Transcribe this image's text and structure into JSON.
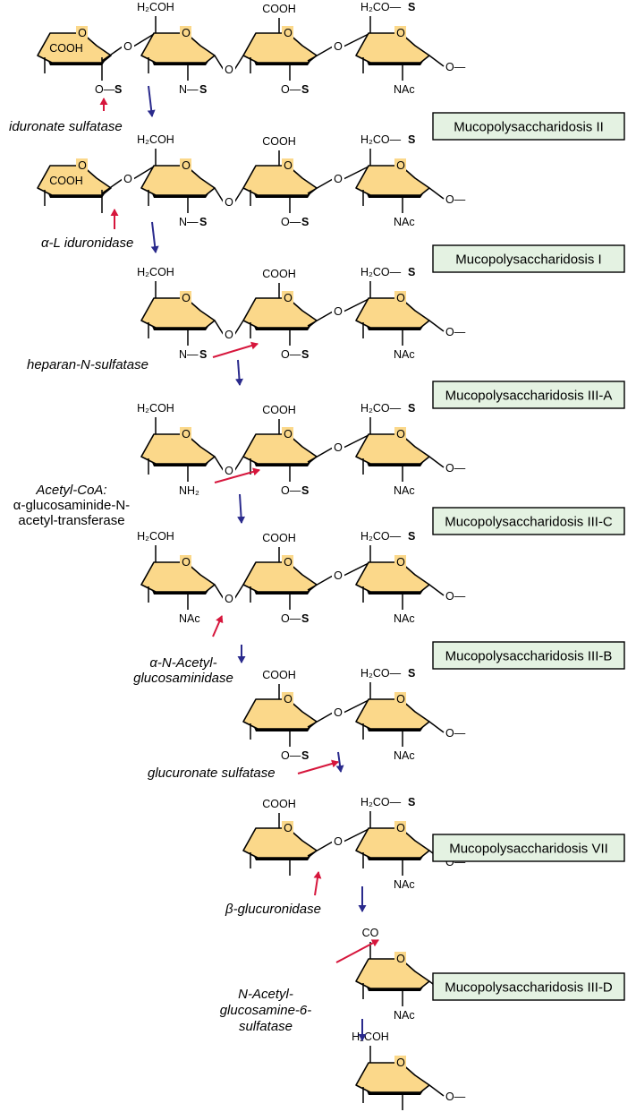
{
  "diagram": {
    "atoms": {
      "ring_o": "O",
      "link_o": "O",
      "tail": "O—",
      "cooh": "COOH",
      "ch2oh": "H₂COH",
      "ch2os": "H₂CO—",
      "s": "S",
      "ns": "N—",
      "os": "O—",
      "nac": "NAc",
      "nh2": "NH₂",
      "co": "CO"
    },
    "enzymes": [
      {
        "id": "iduronate-sulfatase",
        "lines": [
          "iduronate sulfatase"
        ]
      },
      {
        "id": "alpha-l-iduronidase",
        "lines": [
          "α-L iduronidase"
        ]
      },
      {
        "id": "heparan-n-sulfatase",
        "lines": [
          "heparan-N-sulfatase"
        ]
      },
      {
        "id": "acetyl-coa-transferase",
        "lines": [
          "Acetyl-CoA:",
          "α-glucosaminide-N-",
          "acetyl-transferase"
        ]
      },
      {
        "id": "alpha-n-acetylglucosaminidase",
        "lines": [
          "α-N-Acetyl-",
          "glucosaminidase"
        ]
      },
      {
        "id": "glucuronate-sulfatase",
        "lines": [
          "glucuronate sulfatase"
        ]
      },
      {
        "id": "beta-glucuronidase",
        "lines": [
          "β-glucuronidase"
        ]
      },
      {
        "id": "n-acetylglucosamine-6-sulfatase",
        "lines": [
          "N-Acetyl-",
          "glucosamine-6-",
          "sulfatase"
        ]
      }
    ],
    "diseases": [
      "Mucopolysaccharidosis II",
      "Mucopolysaccharidosis I",
      "Mucopolysaccharidosis III-A",
      "Mucopolysaccharidosis III-C",
      "Mucopolysaccharidosis III-B",
      "Mucopolysaccharidosis VII",
      "Mucopolysaccharidosis III-D"
    ],
    "colors": {
      "sugar_fill": "#fbd88a",
      "box_fill": "#e4f2e2",
      "enzyme_arrow": "#d6163c",
      "step_arrow": "#2a2a8c"
    }
  }
}
